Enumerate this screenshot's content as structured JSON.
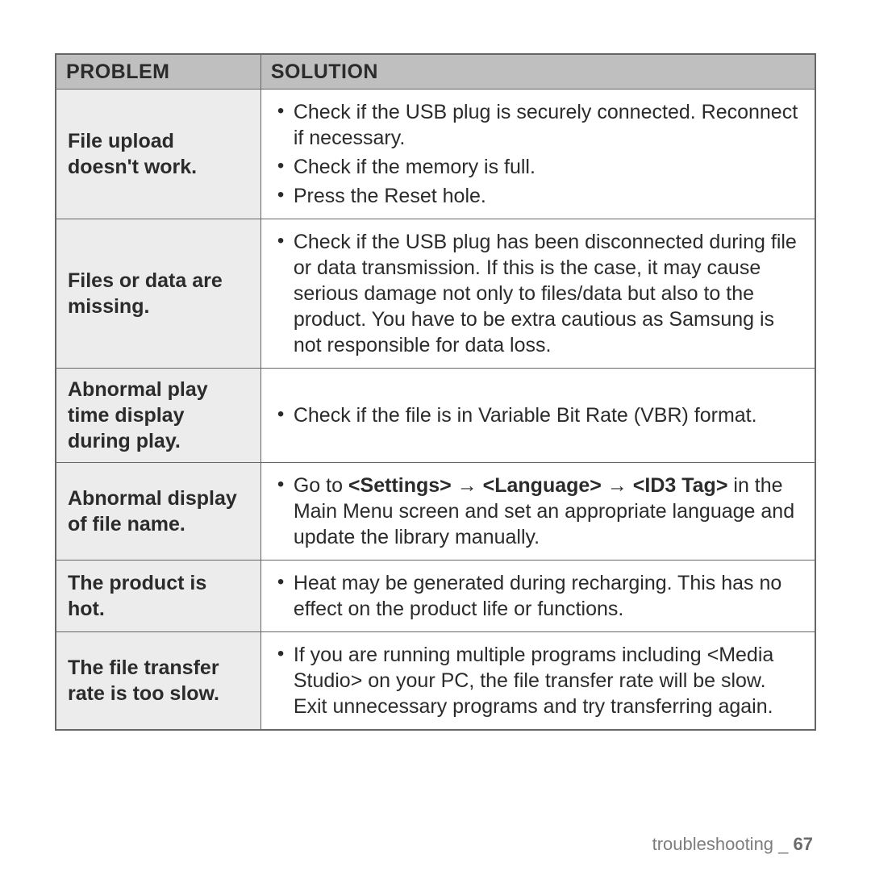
{
  "colors": {
    "header_bg": "#bfbfbf",
    "problem_bg": "#ececec",
    "border": "#666666",
    "text": "#2b2b2b",
    "footer_text": "#7d7d7d"
  },
  "fonts": {
    "base_size_pt": 19,
    "header_size_pt": 19,
    "footer_size_pt": 17,
    "family": "Arial"
  },
  "col_widths_pct": [
    27,
    73
  ],
  "header": {
    "problem": "Problem",
    "solution": "Solution"
  },
  "rows": [
    {
      "problem": "File upload doesn't work.",
      "solutions": [
        "Check if the USB plug is securely connected. Reconnect if necessary.",
        "Check if the memory is full.",
        "Press the Reset hole."
      ]
    },
    {
      "problem": "Files or data are missing.",
      "solutions": [
        "Check if the USB plug has been disconnected during file or data transmission. If this is the case, it may cause serious damage not only to files/data but also to the product. You have to be extra cautious as Samsung is not responsible for data loss."
      ]
    },
    {
      "problem": "Abnormal play time display during play.",
      "solutions": [
        "Check if the file is in Variable Bit Rate (VBR) format."
      ]
    },
    {
      "problem": "Abnormal display of file name.",
      "solutions_html": [
        "Go to <b>&lt;Settings&gt; → &lt;Language&gt; → &lt;ID3 Tag&gt;</b> in the Main Menu screen and set an appropriate language and update the library manually."
      ]
    },
    {
      "problem": "The product is hot.",
      "solutions": [
        "Heat may be generated during recharging. This has no effect on the product life or functions."
      ]
    },
    {
      "problem": "The file transfer rate is too slow.",
      "solutions": [
        "If you are running multiple programs including <Media Studio> on your PC, the file transfer rate will be slow. Exit unnecessary programs and try transferring again."
      ]
    }
  ],
  "footer": {
    "section": "troubleshooting",
    "sep": " _ ",
    "page": "67"
  }
}
